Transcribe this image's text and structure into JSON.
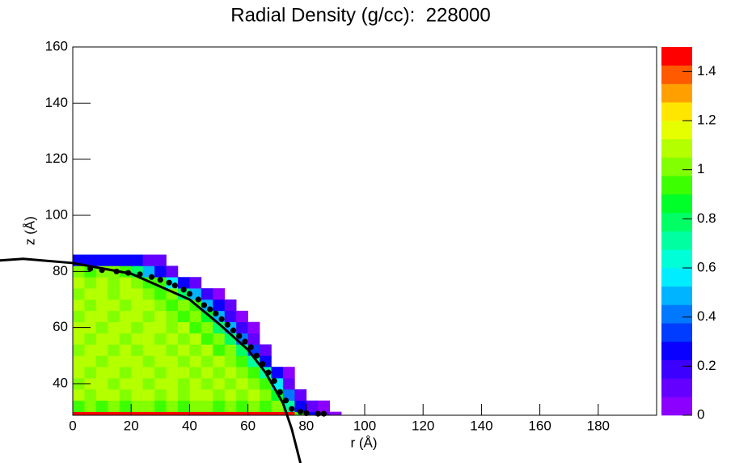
{
  "chart_data": {
    "type": "heatmap",
    "title": "Radial Density (g/cc):  228000",
    "x_label": "r (Å)",
    "y_label": "z (Å)",
    "xlim": [
      0,
      200
    ],
    "ylim": [
      28.75,
      160
    ],
    "xticks": [
      0,
      20,
      40,
      60,
      80,
      100,
      120,
      140,
      160,
      180
    ],
    "yticks": [
      40,
      60,
      80,
      100,
      120,
      140,
      160
    ],
    "zlim": [
      0,
      1.5
    ],
    "zticks": [
      0,
      0.2,
      0.4,
      0.6,
      0.8,
      1,
      1.2,
      1.4
    ],
    "palette": [
      "#8c00ff",
      "#6400ff",
      "#3c00ff",
      "#0a00ff",
      "#003cff",
      "#0078ff",
      "#00b4ff",
      "#00ecff",
      "#00ffd7",
      "#00ffa0",
      "#00ff64",
      "#00ff28",
      "#3cff00",
      "#82ff00",
      "#b4ff00",
      "#e6ff00",
      "#ffe600",
      "#ffa000",
      "#ff5a00",
      "#ff0000"
    ],
    "xbins": [
      0,
      4,
      8,
      12,
      16,
      20,
      24,
      28,
      32,
      36,
      40,
      44,
      48,
      52,
      56,
      60,
      64,
      68,
      72,
      76,
      80,
      84,
      88,
      92
    ],
    "ybins": [
      29,
      30,
      34,
      38,
      42,
      46,
      50,
      54,
      58,
      62,
      66,
      70,
      74,
      78,
      82,
      86
    ],
    "z": [
      [
        1.5,
        1.5,
        1.5,
        1.5,
        1.5,
        1.5,
        1.5,
        1.5,
        1.5,
        1.5,
        1.5,
        1.5,
        1.5,
        1.5,
        1.5,
        1.5,
        1.5,
        1.5,
        1.5,
        0.9,
        0.3,
        0.1,
        0.05
      ],
      [
        0.95,
        1.0,
        0.95,
        1.0,
        0.95,
        1.0,
        1.0,
        0.95,
        1.0,
        0.95,
        1.0,
        1.0,
        0.95,
        1.0,
        0.95,
        1.0,
        0.95,
        1.0,
        0.7,
        0.3,
        0.1,
        0.05,
        null
      ],
      [
        1.05,
        1.0,
        1.05,
        1.1,
        1.0,
        1.05,
        1.1,
        1.0,
        1.05,
        1.0,
        1.1,
        1.05,
        1.0,
        1.05,
        1.0,
        1.05,
        1.0,
        0.85,
        0.4,
        0.1,
        null,
        null,
        null
      ],
      [
        1.0,
        1.05,
        1.1,
        1.0,
        1.05,
        1.1,
        1.0,
        1.05,
        1.1,
        1.0,
        1.05,
        1.0,
        1.1,
        1.0,
        1.05,
        1.0,
        0.95,
        0.6,
        0.15,
        null,
        null,
        null,
        null
      ],
      [
        1.1,
        1.0,
        1.05,
        1.1,
        1.0,
        1.05,
        1.1,
        1.0,
        1.05,
        1.1,
        1.0,
        1.05,
        1.0,
        1.05,
        1.0,
        0.95,
        0.7,
        0.25,
        0.05,
        null,
        null,
        null,
        null
      ],
      [
        1.05,
        1.1,
        1.0,
        1.05,
        1.1,
        1.05,
        1.0,
        1.1,
        1.05,
        1.0,
        1.05,
        1.0,
        1.05,
        1.0,
        0.95,
        0.7,
        0.25,
        null,
        null,
        null,
        null,
        null,
        null
      ],
      [
        1.0,
        1.05,
        1.1,
        1.0,
        1.05,
        1.0,
        1.1,
        1.05,
        1.0,
        1.1,
        1.0,
        1.05,
        0.95,
        1.0,
        0.8,
        0.35,
        0.1,
        null,
        null,
        null,
        null,
        null,
        null
      ],
      [
        1.1,
        1.0,
        1.05,
        1.1,
        1.0,
        1.1,
        1.05,
        1.0,
        1.05,
        1.0,
        1.05,
        0.95,
        1.0,
        0.8,
        0.4,
        0.15,
        null,
        null,
        null,
        null,
        null,
        null,
        null
      ],
      [
        1.05,
        1.1,
        1.0,
        1.05,
        1.1,
        1.0,
        1.05,
        1.1,
        1.0,
        1.05,
        0.95,
        1.0,
        0.8,
        0.45,
        0.2,
        0.05,
        null,
        null,
        null,
        null,
        null,
        null,
        null
      ],
      [
        1.0,
        1.05,
        1.1,
        1.0,
        1.05,
        1.1,
        1.0,
        1.05,
        1.0,
        0.95,
        1.0,
        0.85,
        0.5,
        0.2,
        0.05,
        null,
        null,
        null,
        null,
        null,
        null,
        null,
        null
      ],
      [
        1.1,
        1.0,
        1.05,
        1.1,
        1.0,
        1.05,
        1.1,
        1.0,
        0.95,
        1.0,
        0.9,
        0.5,
        0.25,
        0.1,
        null,
        null,
        null,
        null,
        null,
        null,
        null,
        null,
        null
      ],
      [
        1.0,
        1.1,
        1.05,
        1.0,
        1.1,
        1.05,
        1.0,
        0.95,
        1.0,
        0.8,
        0.5,
        0.2,
        0.05,
        null,
        null,
        null,
        null,
        null,
        null,
        null,
        null,
        null,
        null
      ],
      [
        1.05,
        1.0,
        1.1,
        1.0,
        1.05,
        1.0,
        0.95,
        0.9,
        0.6,
        0.3,
        0.1,
        null,
        null,
        null,
        null,
        null,
        null,
        null,
        null,
        null,
        null,
        null,
        null
      ],
      [
        1.0,
        0.95,
        1.0,
        1.0,
        0.95,
        0.8,
        0.5,
        0.3,
        0.1,
        null,
        null,
        null,
        null,
        null,
        null,
        null,
        null,
        null,
        null,
        null,
        null,
        null,
        null
      ],
      [
        0.3,
        0.3,
        0.3,
        0.3,
        0.3,
        0.3,
        0.1,
        0.1,
        null,
        null,
        null,
        null,
        null,
        null,
        null,
        null,
        null,
        null,
        null,
        null,
        null,
        null,
        null
      ]
    ],
    "points": {
      "color": "#000000",
      "x": [
        6,
        10,
        15,
        19,
        23,
        27,
        30,
        33,
        35,
        38,
        40,
        43,
        45,
        47,
        49,
        51,
        53,
        55,
        57,
        59,
        61,
        63,
        65,
        67,
        69,
        71,
        73,
        75,
        78,
        80,
        84,
        86
      ],
      "y": [
        81,
        80.5,
        80,
        79.5,
        79,
        78,
        77,
        76,
        75,
        73.5,
        72,
        70,
        68,
        66.5,
        65,
        63,
        61,
        59,
        57,
        55,
        53,
        50,
        47,
        44,
        41,
        37,
        34,
        31,
        30,
        29.5,
        29.3,
        29.3
      ]
    },
    "fit": {
      "color": "#000000",
      "x": [
        -25,
        -17,
        0,
        20,
        40,
        50,
        60,
        66,
        72,
        75,
        78
      ],
      "y": [
        83.9,
        84.5,
        83,
        79.2,
        70,
        61.4,
        52.1,
        44,
        33.1,
        23.9,
        11.7
      ]
    }
  }
}
